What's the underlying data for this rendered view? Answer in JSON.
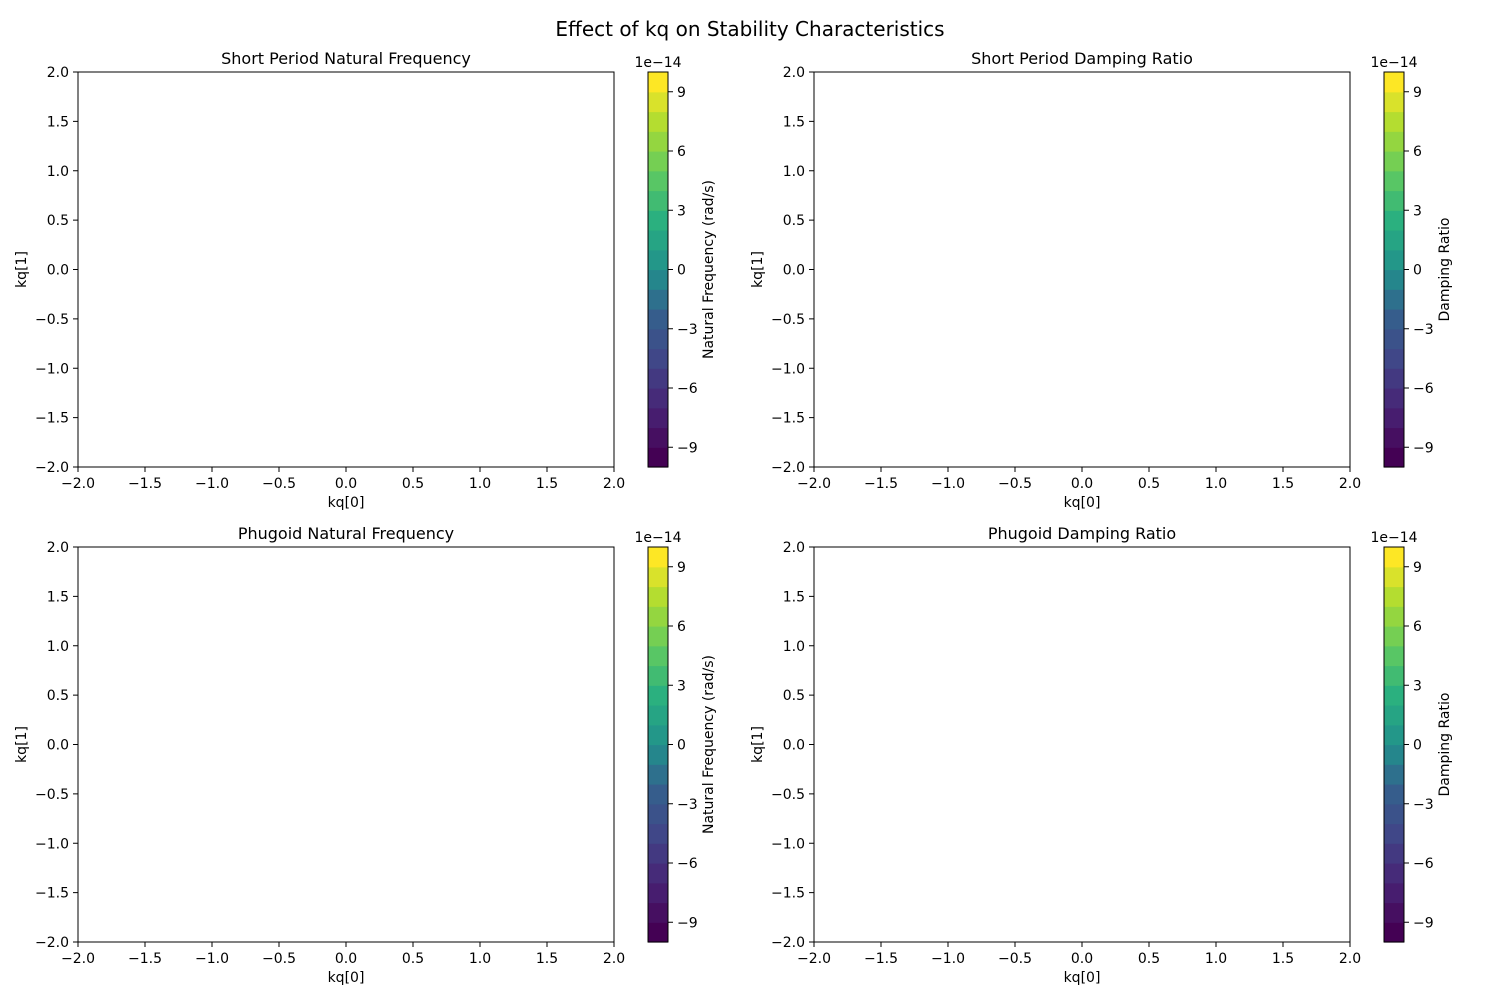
{
  "figure": {
    "suptitle": "Effect of kq on Stability Characteristics"
  },
  "chart_data": [
    {
      "type": "heatmap",
      "title": "Short Period Natural Frequency",
      "xlabel": "kq[0]",
      "ylabel": "kq[1]",
      "xlim": [
        -2.0,
        2.0
      ],
      "ylim": [
        -2.0,
        2.0
      ],
      "xticks": [
        "−2.0",
        "−1.5",
        "−1.0",
        "−0.5",
        "0.0",
        "0.5",
        "1.0",
        "1.5",
        "2.0"
      ],
      "yticks": [
        "−2.0",
        "−1.5",
        "−1.0",
        "−0.5",
        "0.0",
        "0.5",
        "1.0",
        "1.5",
        "2.0"
      ],
      "colorbar": {
        "label": "Natural Frequency (rad/s)",
        "offset": "1e−14",
        "range": [
          -10,
          10
        ],
        "levels": 20,
        "ticks": [
          "−9",
          "−6",
          "−3",
          "0",
          "3",
          "6",
          "9"
        ],
        "colormap": "viridis"
      },
      "grid": false
    },
    {
      "type": "heatmap",
      "title": "Short Period Damping Ratio",
      "xlabel": "kq[0]",
      "ylabel": "kq[1]",
      "xlim": [
        -2.0,
        2.0
      ],
      "ylim": [
        -2.0,
        2.0
      ],
      "xticks": [
        "−2.0",
        "−1.5",
        "−1.0",
        "−0.5",
        "0.0",
        "0.5",
        "1.0",
        "1.5",
        "2.0"
      ],
      "yticks": [
        "−2.0",
        "−1.5",
        "−1.0",
        "−0.5",
        "0.0",
        "0.5",
        "1.0",
        "1.5",
        "2.0"
      ],
      "colorbar": {
        "label": "Damping Ratio",
        "offset": "1e−14",
        "range": [
          -10,
          10
        ],
        "levels": 20,
        "ticks": [
          "−9",
          "−6",
          "−3",
          "0",
          "3",
          "6",
          "9"
        ],
        "colormap": "viridis"
      },
      "grid": false
    },
    {
      "type": "heatmap",
      "title": "Phugoid Natural Frequency",
      "xlabel": "kq[0]",
      "ylabel": "kq[1]",
      "xlim": [
        -2.0,
        2.0
      ],
      "ylim": [
        -2.0,
        2.0
      ],
      "xticks": [
        "−2.0",
        "−1.5",
        "−1.0",
        "−0.5",
        "0.0",
        "0.5",
        "1.0",
        "1.5",
        "2.0"
      ],
      "yticks": [
        "−2.0",
        "−1.5",
        "−1.0",
        "−0.5",
        "0.0",
        "0.5",
        "1.0",
        "1.5",
        "2.0"
      ],
      "colorbar": {
        "label": "Natural Frequency (rad/s)",
        "offset": "1e−14",
        "range": [
          -10,
          10
        ],
        "levels": 20,
        "ticks": [
          "−9",
          "−6",
          "−3",
          "0",
          "3",
          "6",
          "9"
        ],
        "colormap": "viridis"
      },
      "grid": false
    },
    {
      "type": "heatmap",
      "title": "Phugoid Damping Ratio",
      "xlabel": "kq[0]",
      "ylabel": "kq[1]",
      "xlim": [
        -2.0,
        2.0
      ],
      "ylim": [
        -2.0,
        2.0
      ],
      "xticks": [
        "−2.0",
        "−1.5",
        "−1.0",
        "−0.5",
        "0.0",
        "0.5",
        "1.0",
        "1.5",
        "2.0"
      ],
      "yticks": [
        "−2.0",
        "−1.5",
        "−1.0",
        "−0.5",
        "0.0",
        "0.5",
        "1.0",
        "1.5",
        "2.0"
      ],
      "colorbar": {
        "label": "Damping Ratio",
        "offset": "1e−14",
        "range": [
          -10,
          10
        ],
        "levels": 20,
        "ticks": [
          "−9",
          "−6",
          "−3",
          "0",
          "3",
          "6",
          "9"
        ],
        "colormap": "viridis"
      },
      "grid": false
    }
  ]
}
